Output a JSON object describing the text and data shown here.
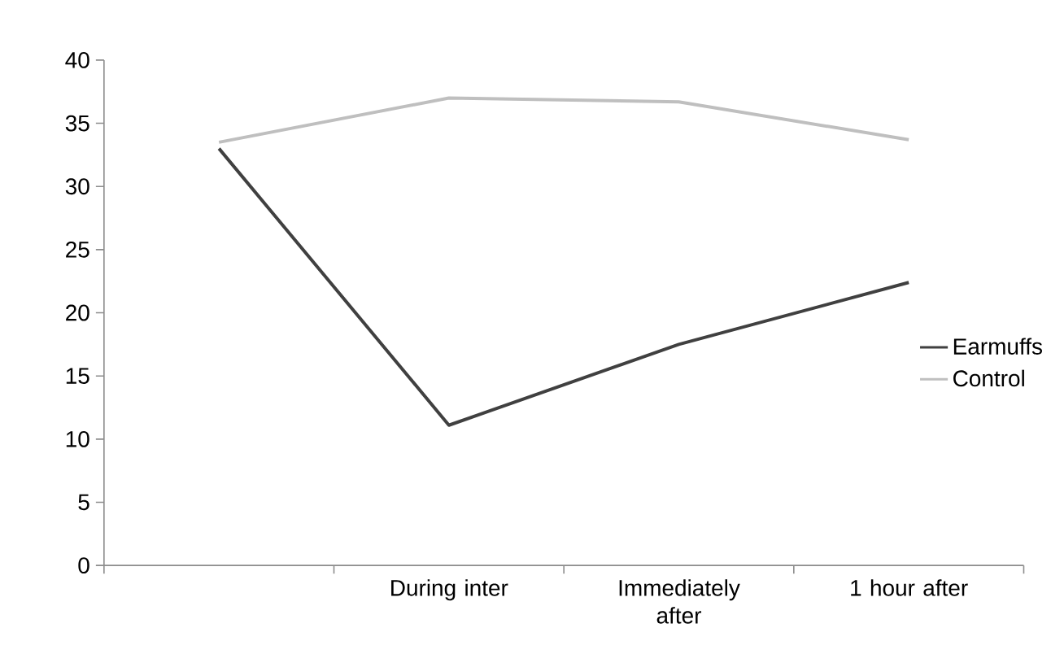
{
  "chart_data": {
    "type": "line",
    "categories": [
      null,
      "During inter",
      "Immediately after",
      "1 hour after"
    ],
    "series": [
      {
        "name": "Earmuffs",
        "color": "#404040",
        "values": [
          33,
          11.1,
          17.5,
          22.4
        ]
      },
      {
        "name": "Control",
        "color": "#bfbfbf",
        "values": [
          33.5,
          37,
          36.7,
          33.7
        ]
      }
    ],
    "ylim": [
      0,
      40
    ],
    "yticks": [
      0,
      5,
      10,
      15,
      20,
      25,
      30,
      35,
      40
    ],
    "grid": false,
    "legend": "right",
    "marker": "none",
    "line_style": "solid"
  }
}
